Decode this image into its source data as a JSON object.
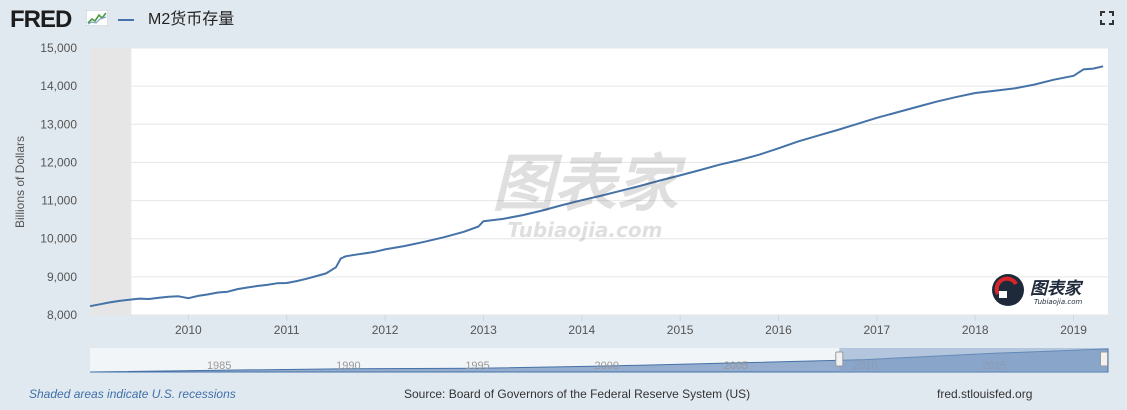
{
  "header": {
    "logo_text": "FRED",
    "series_title": "M2货币存量"
  },
  "footer": {
    "recession_note": "Shaded areas indicate U.S. recessions",
    "source": "Source: Board of Governors of the Federal Reserve System (US)",
    "site": "fred.stlouisfed.org"
  },
  "watermark": {
    "text": "图表家",
    "sub": "Tubiaojia.com"
  },
  "colors": {
    "line": "#4572a7",
    "recession": "#e6e6e6",
    "grid": "#e6e6e6",
    "frame": "#e1e9f0",
    "navigator": "#7f9ec7"
  },
  "chart_data": {
    "type": "line",
    "title": "M2货币存量",
    "xlabel": "",
    "ylabel": "Billions of Dollars",
    "xlim": [
      2009.0,
      2019.35
    ],
    "ylim": [
      8000,
      15000
    ],
    "y_ticks": [
      "8,000",
      "9,000",
      "10,000",
      "11,000",
      "12,000",
      "13,000",
      "14,000",
      "15,000"
    ],
    "y_tick_values": [
      8000,
      9000,
      10000,
      11000,
      12000,
      13000,
      14000,
      15000
    ],
    "x_ticks": [
      "2010",
      "2011",
      "2012",
      "2013",
      "2014",
      "2015",
      "2016",
      "2017",
      "2018",
      "2019"
    ],
    "x_tick_values": [
      2010,
      2011,
      2012,
      2013,
      2014,
      2015,
      2016,
      2017,
      2018,
      2019
    ],
    "recessions": [
      [
        2009.0,
        2009.42
      ]
    ],
    "series": [
      {
        "name": "M2货币存量",
        "x": [
          2009.0,
          2009.1,
          2009.2,
          2009.3,
          2009.4,
          2009.5,
          2009.6,
          2009.7,
          2009.8,
          2009.9,
          2010.0,
          2010.1,
          2010.2,
          2010.3,
          2010.4,
          2010.5,
          2010.6,
          2010.7,
          2010.8,
          2010.9,
          2011.0,
          2011.1,
          2011.2,
          2011.3,
          2011.4,
          2011.5,
          2011.55,
          2011.6,
          2011.7,
          2011.8,
          2011.9,
          2012.0,
          2012.2,
          2012.4,
          2012.6,
          2012.8,
          2012.95,
          2013.0,
          2013.2,
          2013.4,
          2013.6,
          2013.8,
          2014.0,
          2014.2,
          2014.4,
          2014.6,
          2014.8,
          2015.0,
          2015.2,
          2015.4,
          2015.6,
          2015.8,
          2016.0,
          2016.2,
          2016.4,
          2016.6,
          2016.8,
          2017.0,
          2017.2,
          2017.4,
          2017.6,
          2017.8,
          2018.0,
          2018.2,
          2018.4,
          2018.6,
          2018.8,
          2019.0,
          2019.1,
          2019.2,
          2019.3
        ],
        "values": [
          8230,
          8280,
          8330,
          8370,
          8400,
          8430,
          8420,
          8450,
          8480,
          8490,
          8440,
          8500,
          8540,
          8590,
          8610,
          8680,
          8720,
          8760,
          8790,
          8830,
          8840,
          8890,
          8950,
          9020,
          9090,
          9250,
          9480,
          9540,
          9580,
          9620,
          9660,
          9720,
          9810,
          9920,
          10040,
          10180,
          10320,
          10460,
          10520,
          10620,
          10740,
          10880,
          11010,
          11130,
          11260,
          11390,
          11530,
          11660,
          11800,
          11940,
          12060,
          12200,
          12370,
          12550,
          12700,
          12850,
          13010,
          13170,
          13310,
          13450,
          13590,
          13710,
          13820,
          13880,
          13940,
          14040,
          14170,
          14270,
          14440,
          14460,
          14520
        ]
      }
    ],
    "navigator": {
      "tick_labels": [
        "1985",
        "1990",
        "1995",
        "2000",
        "2005",
        "2010",
        "2015"
      ],
      "tick_values": [
        1985,
        1990,
        1995,
        2000,
        2005,
        2010,
        2015
      ],
      "range": [
        1980,
        2019.4
      ],
      "selected": [
        2009.0,
        2019.35
      ]
    }
  }
}
